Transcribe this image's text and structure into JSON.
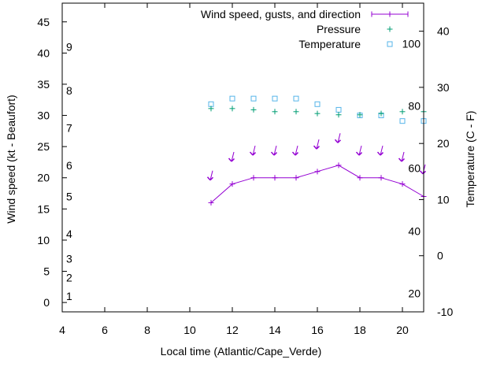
{
  "chart_data": {
    "type": "line",
    "title": "",
    "xlabel": "Local time (Atlantic/Cape_Verde)",
    "ylabel": "Wind speed (kt - Beaufort)",
    "y2label": "Temperature (C - F)",
    "xlim": [
      4,
      21
    ],
    "ylim": [
      -1.5,
      48
    ],
    "y2lim": [
      -10,
      45
    ],
    "x_ticks": [
      4,
      6,
      8,
      10,
      12,
      14,
      16,
      18,
      20
    ],
    "y_ticks": [
      0,
      5,
      10,
      15,
      20,
      25,
      30,
      35,
      40,
      45
    ],
    "y2_ticks": [
      -10,
      0,
      10,
      20,
      30,
      40
    ],
    "beaufort_labels": [
      {
        "text": "1",
        "kt": 1
      },
      {
        "text": "2",
        "kt": 4
      },
      {
        "text": "3",
        "kt": 7
      },
      {
        "text": "4",
        "kt": 11
      },
      {
        "text": "5",
        "kt": 17
      },
      {
        "text": "6",
        "kt": 22
      },
      {
        "text": "7",
        "kt": 28
      },
      {
        "text": "8",
        "kt": 34
      },
      {
        "text": "9",
        "kt": 41
      }
    ],
    "fahrenheit_labels": [
      {
        "text": "20",
        "y2": -6.7
      },
      {
        "text": "40",
        "y2": 4.4
      },
      {
        "text": "60",
        "y2": 15.6
      },
      {
        "text": "80",
        "y2": 26.7
      },
      {
        "text": "100",
        "y2": 37.8
      }
    ],
    "legend": {
      "placement": "top-right",
      "entries": [
        "Wind speed, gusts, and direction",
        "Pressure",
        "Temperature"
      ]
    },
    "colors": {
      "wind": "#9400d3",
      "pressure": "#009e73",
      "temperature": "#56b4e9",
      "axis": "#000000"
    },
    "series": [
      {
        "name": "Wind speed, gusts, and direction",
        "axis": "y",
        "points": [
          {
            "x": 11,
            "y": 16
          },
          {
            "x": 12,
            "y": 19
          },
          {
            "x": 13,
            "y": 20
          },
          {
            "x": 14,
            "y": 20
          },
          {
            "x": 15,
            "y": 20
          },
          {
            "x": 16,
            "y": 21
          },
          {
            "x": 17,
            "y": 22
          },
          {
            "x": 18,
            "y": 20
          },
          {
            "x": 19,
            "y": 20
          },
          {
            "x": 20,
            "y": 19
          },
          {
            "x": 21,
            "y": 17
          }
        ]
      },
      {
        "name": "Wind gust arrows",
        "axis": "y",
        "points": [
          {
            "x": 11,
            "y": 20
          },
          {
            "x": 12,
            "y": 23
          },
          {
            "x": 13,
            "y": 24
          },
          {
            "x": 14,
            "y": 24
          },
          {
            "x": 15,
            "y": 24
          },
          {
            "x": 16,
            "y": 25
          },
          {
            "x": 17,
            "y": 26
          },
          {
            "x": 18,
            "y": 24
          },
          {
            "x": 19,
            "y": 24
          },
          {
            "x": 20,
            "y": 23
          },
          {
            "x": 21,
            "y": 21
          }
        ]
      },
      {
        "name": "Pressure",
        "axis": "y",
        "points": [
          {
            "x": 11,
            "y": 31.1
          },
          {
            "x": 12,
            "y": 31.1
          },
          {
            "x": 13,
            "y": 30.9
          },
          {
            "x": 14,
            "y": 30.6
          },
          {
            "x": 15,
            "y": 30.6
          },
          {
            "x": 16,
            "y": 30.3
          },
          {
            "x": 17,
            "y": 30.1
          },
          {
            "x": 18,
            "y": 30.1
          },
          {
            "x": 19,
            "y": 30.3
          },
          {
            "x": 20,
            "y": 30.6
          },
          {
            "x": 21,
            "y": 30.6
          }
        ]
      },
      {
        "name": "Temperature",
        "axis": "y2",
        "points": [
          {
            "x": 11,
            "y": 27
          },
          {
            "x": 12,
            "y": 28
          },
          {
            "x": 13,
            "y": 28
          },
          {
            "x": 14,
            "y": 28
          },
          {
            "x": 15,
            "y": 28
          },
          {
            "x": 16,
            "y": 27
          },
          {
            "x": 17,
            "y": 26
          },
          {
            "x": 18,
            "y": 25
          },
          {
            "x": 19,
            "y": 25
          },
          {
            "x": 20,
            "y": 24
          },
          {
            "x": 21,
            "y": 24
          }
        ]
      }
    ]
  }
}
